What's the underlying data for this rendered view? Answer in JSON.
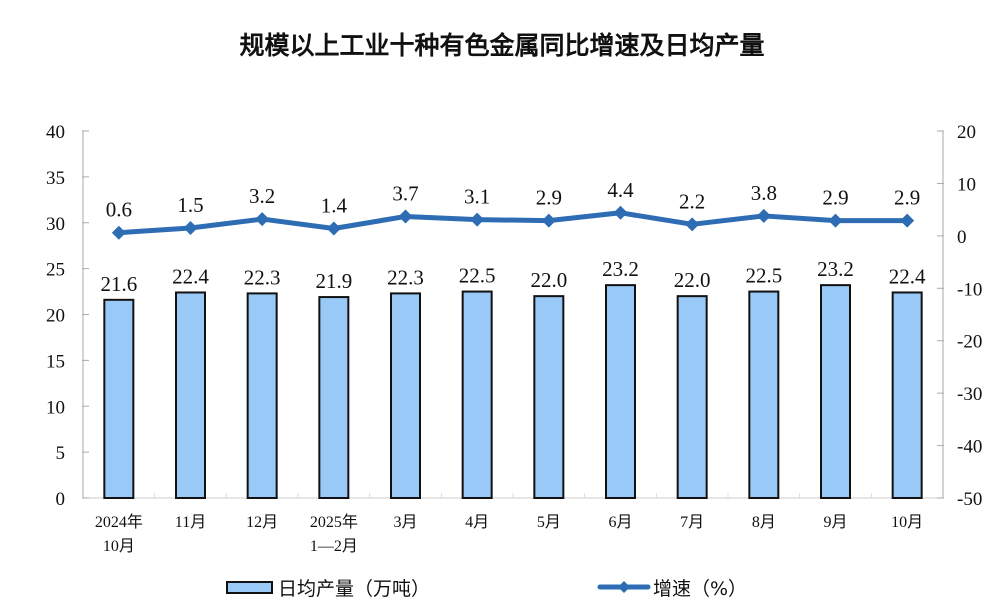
{
  "title": "规模以上工业十种有色金属同比增速及日均产量",
  "chart_data": {
    "type": "bar+line",
    "title": "规模以上工业十种有色金属同比增速及日均产量",
    "categories": [
      [
        "2024年",
        "10月"
      ],
      [
        "11月"
      ],
      [
        "12月"
      ],
      [
        "2025年",
        "1—2月"
      ],
      [
        "3月"
      ],
      [
        "4月"
      ],
      [
        "5月"
      ],
      [
        "6月"
      ],
      [
        "7月"
      ],
      [
        "8月"
      ],
      [
        "9月"
      ],
      [
        "10月"
      ]
    ],
    "series": [
      {
        "name": "日均产量（万吨）",
        "type": "bar",
        "axis": "left",
        "values": [
          21.6,
          22.4,
          22.3,
          21.9,
          22.3,
          22.5,
          22.0,
          23.2,
          22.0,
          22.5,
          23.2,
          22.4
        ],
        "labels": [
          "21.6",
          "22.4",
          "22.3",
          "21.9",
          "22.3",
          "22.5",
          "22.0",
          "23.2",
          "22.0",
          "22.5",
          "23.2",
          "22.4"
        ],
        "color": "#99c9f7"
      },
      {
        "name": "增速（%）",
        "type": "line",
        "axis": "right",
        "values": [
          0.6,
          1.5,
          3.2,
          1.4,
          3.7,
          3.1,
          2.9,
          4.4,
          2.2,
          3.8,
          2.9,
          2.9
        ],
        "labels": [
          "0.6",
          "1.5",
          "3.2",
          "1.4",
          "3.7",
          "3.1",
          "2.9",
          "4.4",
          "2.2",
          "3.8",
          "2.9",
          "2.9"
        ],
        "color": "#2e6db4"
      }
    ],
    "left_axis": {
      "ticks": [
        "0",
        "5",
        "10",
        "15",
        "20",
        "25",
        "30",
        "35",
        "40"
      ],
      "ylim": [
        0,
        40
      ]
    },
    "right_axis": {
      "ticks": [
        "-50",
        "-40",
        "-30",
        "-20",
        "-10",
        "0",
        "10",
        "20"
      ],
      "ylim": [
        -50,
        20
      ]
    },
    "legend": {
      "position": "bottom",
      "entries": [
        "日均产量（万吨）",
        "增速（%）"
      ]
    },
    "grid": false
  }
}
